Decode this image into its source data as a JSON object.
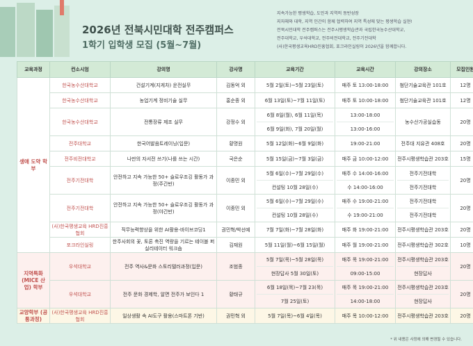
{
  "header": {
    "title": "2026년 전북시민대학 전주캠퍼스",
    "subtitle": "1학기 입학생 모집 (5월~7월)",
    "intro": [
      "지속가능한 평생학습, 도민과 지역의 동반성장",
      "지자체와 대학, 지역 인간이 함께 협력하여 지역 특성에 맞는 평생학습 실현!",
      "전북시민대학 전주캠퍼스는 전주시평생학습관과 국립한국농수산대학교,",
      "전주대학교, 우석대학교, 전주비전대학교, 전주기전대학",
      "(사)한국평생교육HRD진흥협회, 포크라인실링이 2026년을 함께합니다."
    ]
  },
  "table": {
    "columns": [
      "교육과정",
      "컨소시엄",
      "강의명",
      "강사명",
      "교육기간",
      "교육시간",
      "강의장소",
      "모집인원"
    ],
    "groups": [
      {
        "name": "생애 도약 학부",
        "rows": [
          {
            "consortium": "한국농수산대학교",
            "lecture": "건설기계(지게차) 운전실무",
            "instructor": "김동억 외",
            "period": [
              "5월 2일(토)~5월 23일(토)"
            ],
            "time": [
              "매주 토 13:00-18:00"
            ],
            "place": [
              "첨단기술교육관 101호"
            ],
            "capacity": "12명"
          },
          {
            "consortium": "한국농수산대학교",
            "lecture": "농업기계 정비기술 실무",
            "instructor": "홍순종 외",
            "period": [
              "6월 13일(토)~7월 11일(토)"
            ],
            "time": [
              "매주 토 10:00-18:00"
            ],
            "place": [
              "첨단기술교육관 101호"
            ],
            "capacity": "12명"
          },
          {
            "consortium": "한국농수산대학교",
            "lecture": "전통장류 제조 실무",
            "instructor": "강정수 외",
            "period": [
              "6월 8일(월), 6월 11일(목)",
              "6월 9일(화), 7월 20일(월)"
            ],
            "time": [
              "13:00-18:00",
              "13:00-16:00"
            ],
            "place": [
              "농수산가공실습동"
            ],
            "capacity": "20명"
          },
          {
            "consortium": "전주대학교",
            "lecture": "한국어발음트레이닝(입문)",
            "instructor": "황명원",
            "period": [
              "5월 12일(화)~6월 9일(화)"
            ],
            "time": [
              "19:00-21:00"
            ],
            "place": [
              "전주대 지유관 408호"
            ],
            "capacity": "20명"
          },
          {
            "consortium": "전주비전대학교",
            "lecture": "나만의 자서전 쓰기(나를 쓰는 시간)",
            "instructor": "국은순",
            "period": [
              "5월 15일(금)~7월 3일(금)"
            ],
            "time": [
              "매주 금 10:00-12:00"
            ],
            "place": [
              "전주시평생학습관 203호"
            ],
            "capacity": "15명"
          },
          {
            "consortium": "전주기전대학",
            "lecture": "안전하고 지속 가능한 50+ 슬로우조깅 활동가 과정(주간반)",
            "instructor": "이종민 외",
            "period": [
              "5월 6일(수)~7월 29일(수)",
              "컨설팅 10월 28일(수)"
            ],
            "time": [
              "매주 수 14:00-16:00",
              "수 14:00-16:00"
            ],
            "place": [
              "전주기전대학",
              "전주기전대학"
            ],
            "capacity": "20명"
          },
          {
            "consortium": "전주기전대학",
            "lecture": "안전하고 지속 가능한 50+ 슬로우조깅 활동가 과정(야간반)",
            "instructor": "이종민 외",
            "period": [
              "5월 6일(수)~7월 29일(수)",
              "컨설팅 10월 28일(수)"
            ],
            "time": [
              "매주 수 19:00-21:00",
              "수 19:00-21:00"
            ],
            "place": [
              "전주기전대학",
              "전주기전대학"
            ],
            "capacity": "20명"
          },
          {
            "consortium": "(사)한국평생교육 HRD진흥협회",
            "lecture": "직무능력향상을 위한 AI활용-바이브코딩1",
            "instructor": "권민혁/박선예",
            "period": [
              "7월 7일(화)~7월 28일(화)"
            ],
            "time": [
              "매주 화 19:00-21:00"
            ],
            "place": [
              "전주시평생학습관 203호"
            ],
            "capacity": "20명"
          },
          {
            "consortium": "포크라인실링",
            "lecture": "한주사회의 꽃, 토론 촉진 역량을 기르는 테이블 퍼실리테이터 워크숍",
            "instructor": "김재원",
            "period": [
              "5월 11일(월)~6월 15일(월)"
            ],
            "time": [
              "매주 월 19:00-21:00"
            ],
            "place": [
              "전주시평생학습관 302호"
            ],
            "capacity": "10명"
          }
        ]
      },
      {
        "name": "지역특화 (MICE 산업) 학부",
        "rows": [
          {
            "consortium": "우석대학교",
            "lecture": "전주 역사&문화 스토리텔러과정(입문)",
            "instructor": "조범종",
            "period": [
              "5월 7일(목)~5월 28일(목)",
              "현장답사 5월 30일(토)"
            ],
            "time": [
              "매주 목 19:00-21:00",
              "09:00-15:00"
            ],
            "place": [
              "전주시평생학습관 203호",
              "현장답사"
            ],
            "capacity": "20명"
          },
          {
            "consortium": "우석대학교",
            "lecture": "전주 문화 경제학, 알면 전주가 보인다 1",
            "instructor": "황태규",
            "period": [
              "6월 18일(목)~7월 23(목)",
              "7월 25일(토)"
            ],
            "time": [
              "매주 목 19:00-21:00",
              "14:00-18:00"
            ],
            "place": [
              "전주시평생학습관 203호",
              "현장답사"
            ],
            "capacity": "20명"
          }
        ]
      },
      {
        "name": "교양학부 (공통과정)",
        "rows": [
          {
            "consortium": "(사)한국평생교육 HRD진흥협회",
            "lecture": "일상생활 속 AI도구 활용(스마트폰 기반)",
            "instructor": "권민혁 외",
            "period": [
              "5월 7일(목)~6월 4일(목)"
            ],
            "time": [
              "매주 목 10:00-12:00"
            ],
            "place": [
              "전주시평생학습관 203호"
            ],
            "capacity": "20명"
          }
        ]
      }
    ]
  },
  "footnote": "* 위 내용은 사정에 의해 변경될 수 있습니다."
}
